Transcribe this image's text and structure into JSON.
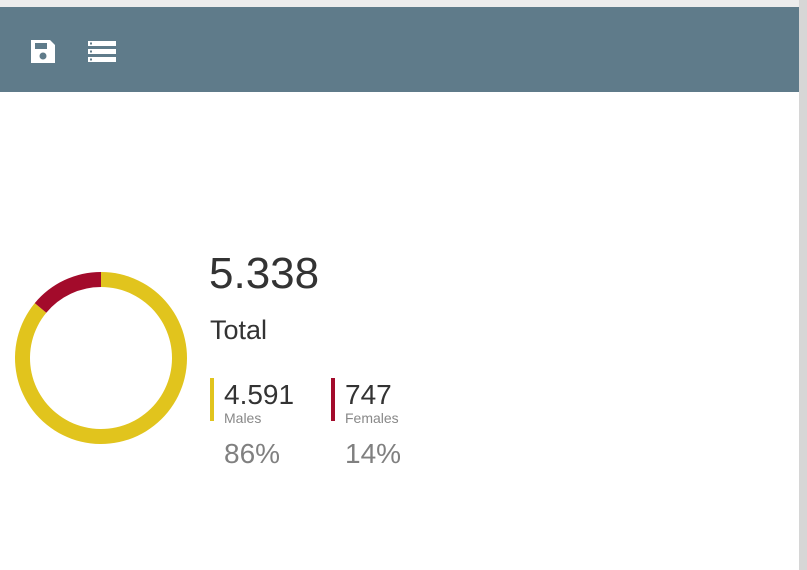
{
  "chart_data": {
    "type": "donut",
    "total_label": "5.338",
    "total_name": "Total",
    "categories": [
      "Males",
      "Females"
    ],
    "values": [
      4591,
      747
    ],
    "value_labels": [
      "4.591",
      "747"
    ],
    "percent_labels": [
      "86%",
      "14%"
    ],
    "colors": [
      "#e1c41d",
      "#a30b2b"
    ]
  }
}
